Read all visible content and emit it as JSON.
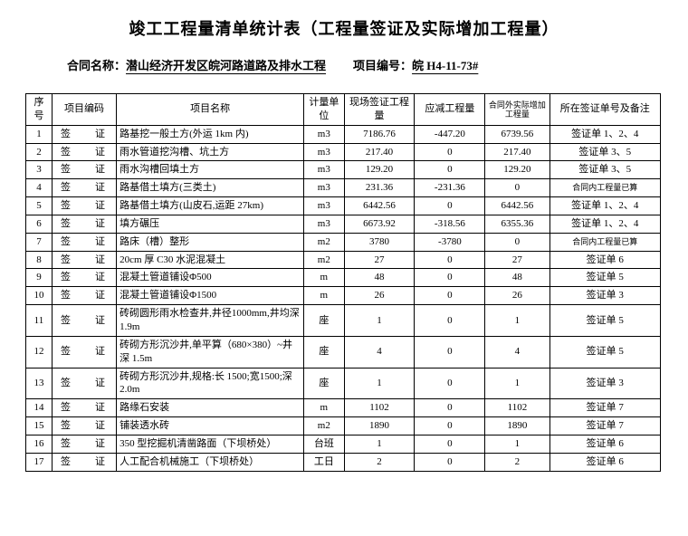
{
  "title": "竣工工程量清单统计表（工程量签证及实际增加工程量）",
  "contractLabel": "合同名称：",
  "contractName": "潜山经济开发区皖河路道路及排水工程",
  "projectNoLabel": "项目编号：",
  "projectNo": "皖 H4-11-73#",
  "headers": {
    "seq": "序号",
    "code": "项目编码",
    "name": "项目名称",
    "unit": "计量单位",
    "q1": "现场签证工程量",
    "q2": "应减工程量",
    "q3": "合同外实际增加工程量",
    "note": "所在签证单号及备注"
  },
  "rows": [
    {
      "seq": "1",
      "code": "签　证",
      "name": "路基挖一般土方(外运 1km 内)",
      "unit": "m3",
      "q1": "7186.76",
      "q2": "-447.20",
      "q3": "6739.56",
      "note": "签证单 1、2、4"
    },
    {
      "seq": "2",
      "code": "签　证",
      "name": "雨水管道挖沟槽、坑土方",
      "unit": "m3",
      "q1": "217.40",
      "q2": "0",
      "q3": "217.40",
      "note": "签证单 3、5"
    },
    {
      "seq": "3",
      "code": "签　证",
      "name": "雨水沟槽回填土方",
      "unit": "m3",
      "q1": "129.20",
      "q2": "0",
      "q3": "129.20",
      "note": "签证单 3、5"
    },
    {
      "seq": "4",
      "code": "签　证",
      "name": "路基借土填方(三类土)",
      "unit": "m3",
      "q1": "231.36",
      "q2": "-231.36",
      "q3": "0",
      "note": "合同内工程量已算",
      "small": true
    },
    {
      "seq": "5",
      "code": "签　证",
      "name": "路基借土填方(山皮石,运距 27km)",
      "unit": "m3",
      "q1": "6442.56",
      "q2": "0",
      "q3": "6442.56",
      "note": "签证单 1、2、4"
    },
    {
      "seq": "6",
      "code": "签　证",
      "name": "填方碾压",
      "unit": "m3",
      "q1": "6673.92",
      "q2": "-318.56",
      "q3": "6355.36",
      "note": "签证单 1、2、4"
    },
    {
      "seq": "7",
      "code": "签　证",
      "name": "路床（槽）整形",
      "unit": "m2",
      "q1": "3780",
      "q2": "-3780",
      "q3": "0",
      "note": "合同内工程量已算",
      "small": true
    },
    {
      "seq": "8",
      "code": "签　证",
      "name": "20cm 厚 C30 水泥混凝土",
      "unit": "m2",
      "q1": "27",
      "q2": "0",
      "q3": "27",
      "note": "签证单 6"
    },
    {
      "seq": "9",
      "code": "签　证",
      "name": "混凝土管道铺设Φ500",
      "unit": "m",
      "q1": "48",
      "q2": "0",
      "q3": "48",
      "note": "签证单 5"
    },
    {
      "seq": "10",
      "code": "签　证",
      "name": "混凝土管道铺设Φ1500",
      "unit": "m",
      "q1": "26",
      "q2": "0",
      "q3": "26",
      "note": "签证单 3"
    },
    {
      "seq": "11",
      "code": "签　证",
      "name": "砖砌圆形雨水检查井,井径1000mm,井均深 1.9m",
      "unit": "座",
      "q1": "1",
      "q2": "0",
      "q3": "1",
      "note": "签证单 5",
      "tall": true
    },
    {
      "seq": "12",
      "code": "签　证",
      "name": "砖砌方形沉沙井,单平算（680×380）~井深 1.5m",
      "unit": "座",
      "q1": "4",
      "q2": "0",
      "q3": "4",
      "note": "签证单 5",
      "tall": true
    },
    {
      "seq": "13",
      "code": "签　证",
      "name": "砖砌方形沉沙井,规格:长 1500;宽1500;深 2.0m",
      "unit": "座",
      "q1": "1",
      "q2": "0",
      "q3": "1",
      "note": "签证单 3",
      "tall": true
    },
    {
      "seq": "14",
      "code": "签　证",
      "name": "路缘石安装",
      "unit": "m",
      "q1": "1102",
      "q2": "0",
      "q3": "1102",
      "note": "签证单 7"
    },
    {
      "seq": "15",
      "code": "签　证",
      "name": "铺装透水砖",
      "unit": "m2",
      "q1": "1890",
      "q2": "0",
      "q3": "1890",
      "note": "签证单 7"
    },
    {
      "seq": "16",
      "code": "签　证",
      "name": "350 型挖掘机清凿路面（下坝桥处）",
      "unit": "台班",
      "q1": "1",
      "q2": "0",
      "q3": "1",
      "note": "签证单 6"
    },
    {
      "seq": "17",
      "code": "签　证",
      "name": "人工配合机械施工（下坝桥处）",
      "unit": "工日",
      "q1": "2",
      "q2": "0",
      "q3": "2",
      "note": "签证单 6"
    }
  ]
}
